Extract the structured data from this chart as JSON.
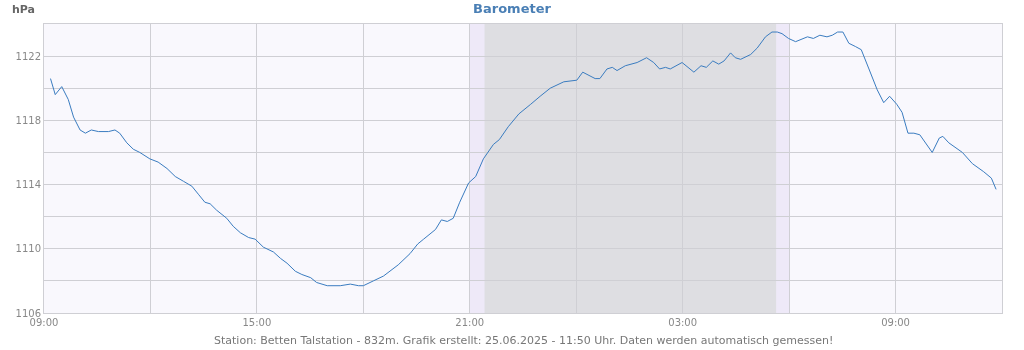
{
  "chart_data": {
    "type": "line",
    "title": "Barometer",
    "ylabel": "hPa",
    "annotations": [
      "Station: Betten Talstation - 832m. Grafik erstellt: 25.06.2025 - 11:50 Uhr. Daten werden automatisch gemessen!"
    ],
    "x": [
      "2025-06-24T09:11",
      "2025-06-24T09:19",
      "2025-06-24T09:30",
      "2025-06-24T09:41",
      "2025-06-24T09:50",
      "2025-06-24T10:01",
      "2025-06-24T10:10",
      "2025-06-24T10:20",
      "2025-06-24T10:32",
      "2025-06-24T10:49",
      "2025-06-24T11:00",
      "2025-06-24T11:08",
      "2025-06-24T11:20",
      "2025-06-24T11:31",
      "2025-06-24T11:42",
      "2025-06-24T11:59",
      "2025-06-24T12:13",
      "2025-06-24T12:28",
      "2025-06-24T12:42",
      "2025-06-24T12:56",
      "2025-06-24T13:10",
      "2025-06-24T13:21",
      "2025-06-24T13:32",
      "2025-06-24T13:41",
      "2025-06-24T13:52",
      "2025-06-24T14:09",
      "2025-06-24T14:20",
      "2025-06-24T14:32",
      "2025-06-24T14:46",
      "2025-06-24T14:57",
      "2025-06-24T15:11",
      "2025-06-24T15:28",
      "2025-06-24T15:40",
      "2025-06-24T15:51",
      "2025-06-24T16:05",
      "2025-06-24T16:16",
      "2025-06-24T16:31",
      "2025-06-24T16:41",
      "2025-06-24T16:59",
      "2025-06-24T17:21",
      "2025-06-24T17:38",
      "2025-06-24T17:52",
      "2025-06-24T18:00",
      "2025-06-24T18:17",
      "2025-06-24T18:34",
      "2025-06-24T18:59",
      "2025-06-24T19:19",
      "2025-06-24T19:32",
      "2025-06-24T19:42",
      "2025-06-24T20:02",
      "2025-06-24T20:12",
      "2025-06-24T20:22",
      "2025-06-24T20:32",
      "2025-06-24T20:43",
      "2025-06-24T20:58",
      "2025-06-24T21:10",
      "2025-06-24T21:23",
      "2025-06-24T21:40",
      "2025-06-24T21:50",
      "2025-06-24T22:05",
      "2025-06-24T22:23",
      "2025-06-24T22:43",
      "2025-06-24T22:59",
      "2025-06-24T23:16",
      "2025-06-24T23:39",
      "2025-06-25T00:01",
      "2025-06-25T00:11",
      "2025-06-25T00:32",
      "2025-06-25T00:40",
      "2025-06-25T00:52",
      "2025-06-25T01:01",
      "2025-06-25T01:09",
      "2025-06-25T01:23",
      "2025-06-25T01:43",
      "2025-06-25T01:59",
      "2025-06-25T02:11",
      "2025-06-25T02:21",
      "2025-06-25T02:31",
      "2025-06-25T02:39",
      "2025-06-25T02:59",
      "2025-06-25T03:19",
      "2025-06-25T03:31",
      "2025-06-25T03:40",
      "2025-06-25T03:51",
      "2025-06-25T04:01",
      "2025-06-25T04:10",
      "2025-06-25T04:21",
      "2025-06-25T04:29",
      "2025-06-25T04:38",
      "2025-06-25T04:55",
      "2025-06-25T05:06",
      "2025-06-25T05:20",
      "2025-06-25T05:31",
      "2025-06-25T05:40",
      "2025-06-25T05:48",
      "2025-06-25T05:59",
      "2025-06-25T06:11",
      "2025-06-25T06:31",
      "2025-06-25T06:41",
      "2025-06-25T06:52",
      "2025-06-25T07:04",
      "2025-06-25T07:13",
      "2025-06-25T07:22",
      "2025-06-25T07:31",
      "2025-06-25T07:41",
      "2025-06-25T07:52",
      "2025-06-25T08:02",
      "2025-06-25T08:15",
      "2025-06-25T08:29",
      "2025-06-25T08:40",
      "2025-06-25T08:50",
      "2025-06-25T09:02",
      "2025-06-25T09:11",
      "2025-06-25T09:21",
      "2025-06-25T09:31",
      "2025-06-25T09:41",
      "2025-06-25T10:02",
      "2025-06-25T10:14",
      "2025-06-25T10:20",
      "2025-06-25T10:30",
      "2025-06-25T10:53",
      "2025-06-25T11:10",
      "2025-06-25T11:29",
      "2025-06-25T11:42",
      "2025-06-25T11:50"
    ],
    "series": [
      {
        "color": "#3a7cc0",
        "values": [
          1120.6,
          1119.6,
          1120.1,
          1119.3,
          1118.2,
          1117.4,
          1117.2,
          1117.4,
          1117.3,
          1117.3,
          1117.4,
          1117.2,
          1116.6,
          1116.2,
          1116.0,
          1115.6,
          1115.4,
          1115.0,
          1114.5,
          1114.2,
          1113.9,
          1113.4,
          1112.9,
          1112.8,
          1112.4,
          1111.9,
          1111.4,
          1111.0,
          1110.7,
          1110.6,
          1110.1,
          1109.8,
          1109.4,
          1109.1,
          1108.6,
          1108.4,
          1108.2,
          1107.9,
          1107.7,
          1107.7,
          1107.8,
          1107.7,
          1107.7,
          1108.0,
          1108.3,
          1109.0,
          1109.7,
          1110.3,
          1110.6,
          1111.2,
          1111.8,
          1111.7,
          1111.9,
          1112.9,
          1114.1,
          1114.5,
          1115.6,
          1116.5,
          1116.8,
          1117.6,
          1118.4,
          1119.0,
          1119.5,
          1120.0,
          1120.4,
          1120.5,
          1121.0,
          1120.6,
          1120.6,
          1121.2,
          1121.3,
          1121.1,
          1121.4,
          1121.6,
          1121.9,
          1121.6,
          1121.2,
          1121.3,
          1121.2,
          1121.6,
          1121.0,
          1121.4,
          1121.3,
          1121.7,
          1121.5,
          1121.7,
          1122.2,
          1121.9,
          1121.8,
          1122.1,
          1122.5,
          1123.2,
          1123.5,
          1123.5,
          1123.4,
          1123.1,
          1122.9,
          1123.2,
          1123.1,
          1123.3,
          1123.2,
          1123.3,
          1123.5,
          1123.5,
          1122.8,
          1122.6,
          1122.4,
          1121.2,
          1119.9,
          1119.1,
          1119.5,
          1119.0,
          1118.5,
          1117.2,
          1117.2,
          1117.1,
          1116.0,
          1116.9,
          1117.0,
          1116.6,
          1116.0,
          1115.3,
          1114.8,
          1114.4,
          1113.7
        ]
      }
    ],
    "xlim": [
      "2025-06-24T09:00",
      "2025-06-25T12:00"
    ],
    "xticks": [
      {
        "value": "2025-06-24T09:00",
        "label": "09:00"
      },
      {
        "value": "2025-06-24T12:00",
        "label": null
      },
      {
        "value": "2025-06-24T15:00",
        "label": "15:00"
      },
      {
        "value": "2025-06-24T18:00",
        "label": null
      },
      {
        "value": "2025-06-24T21:00",
        "label": "21:00"
      },
      {
        "value": "2025-06-25T00:00",
        "label": null
      },
      {
        "value": "2025-06-25T03:00",
        "label": "03:00"
      },
      {
        "value": "2025-06-25T06:00",
        "label": null
      },
      {
        "value": "2025-06-25T09:00",
        "label": "09:00"
      }
    ],
    "ylim": [
      1106,
      1124
    ],
    "yticks": [
      1106,
      {
        "value": 1108,
        "label": null
      },
      1110,
      {
        "value": 1112,
        "label": null
      },
      1114,
      {
        "value": 1116,
        "label": null
      },
      1118,
      {
        "value": 1120,
        "label": null
      },
      1122
    ],
    "bands": [
      {
        "axis": "x",
        "from": "2025-06-24T21:00",
        "to": "2025-06-25T06:00",
        "color": "#eee9f8"
      },
      {
        "axis": "x",
        "from": "2025-06-24T21:25",
        "to": "2025-06-25T05:38",
        "color": "#dedee2"
      }
    ],
    "grid": true,
    "marker": "none",
    "line_style": "solid"
  }
}
